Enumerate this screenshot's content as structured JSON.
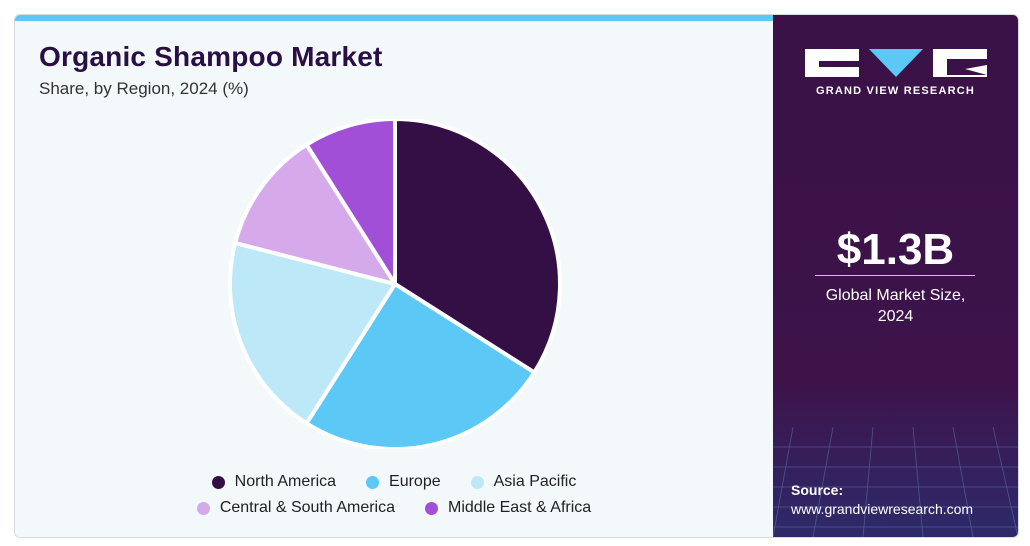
{
  "chart_data": {
    "type": "pie",
    "title": "Organic Shampoo Market",
    "subtitle": "Share, by Region, 2024 (%)",
    "categories": [
      "North America",
      "Europe",
      "Asia Pacific",
      "Central & South America",
      "Middle East & Africa"
    ],
    "values": [
      34,
      25,
      20,
      12,
      9
    ],
    "colors": [
      "#330f45",
      "#5bc8f5",
      "#bde8f8",
      "#d5a9ea",
      "#a24fd8"
    ],
    "legend_position": "bottom"
  },
  "brand": {
    "name": "GRAND VIEW RESEARCH"
  },
  "summary": {
    "value": "$1.3B",
    "label_line1": "Global Market Size,",
    "label_line2": "2024"
  },
  "source": {
    "label": "Source:",
    "url": "www.grandviewresearch.com"
  }
}
